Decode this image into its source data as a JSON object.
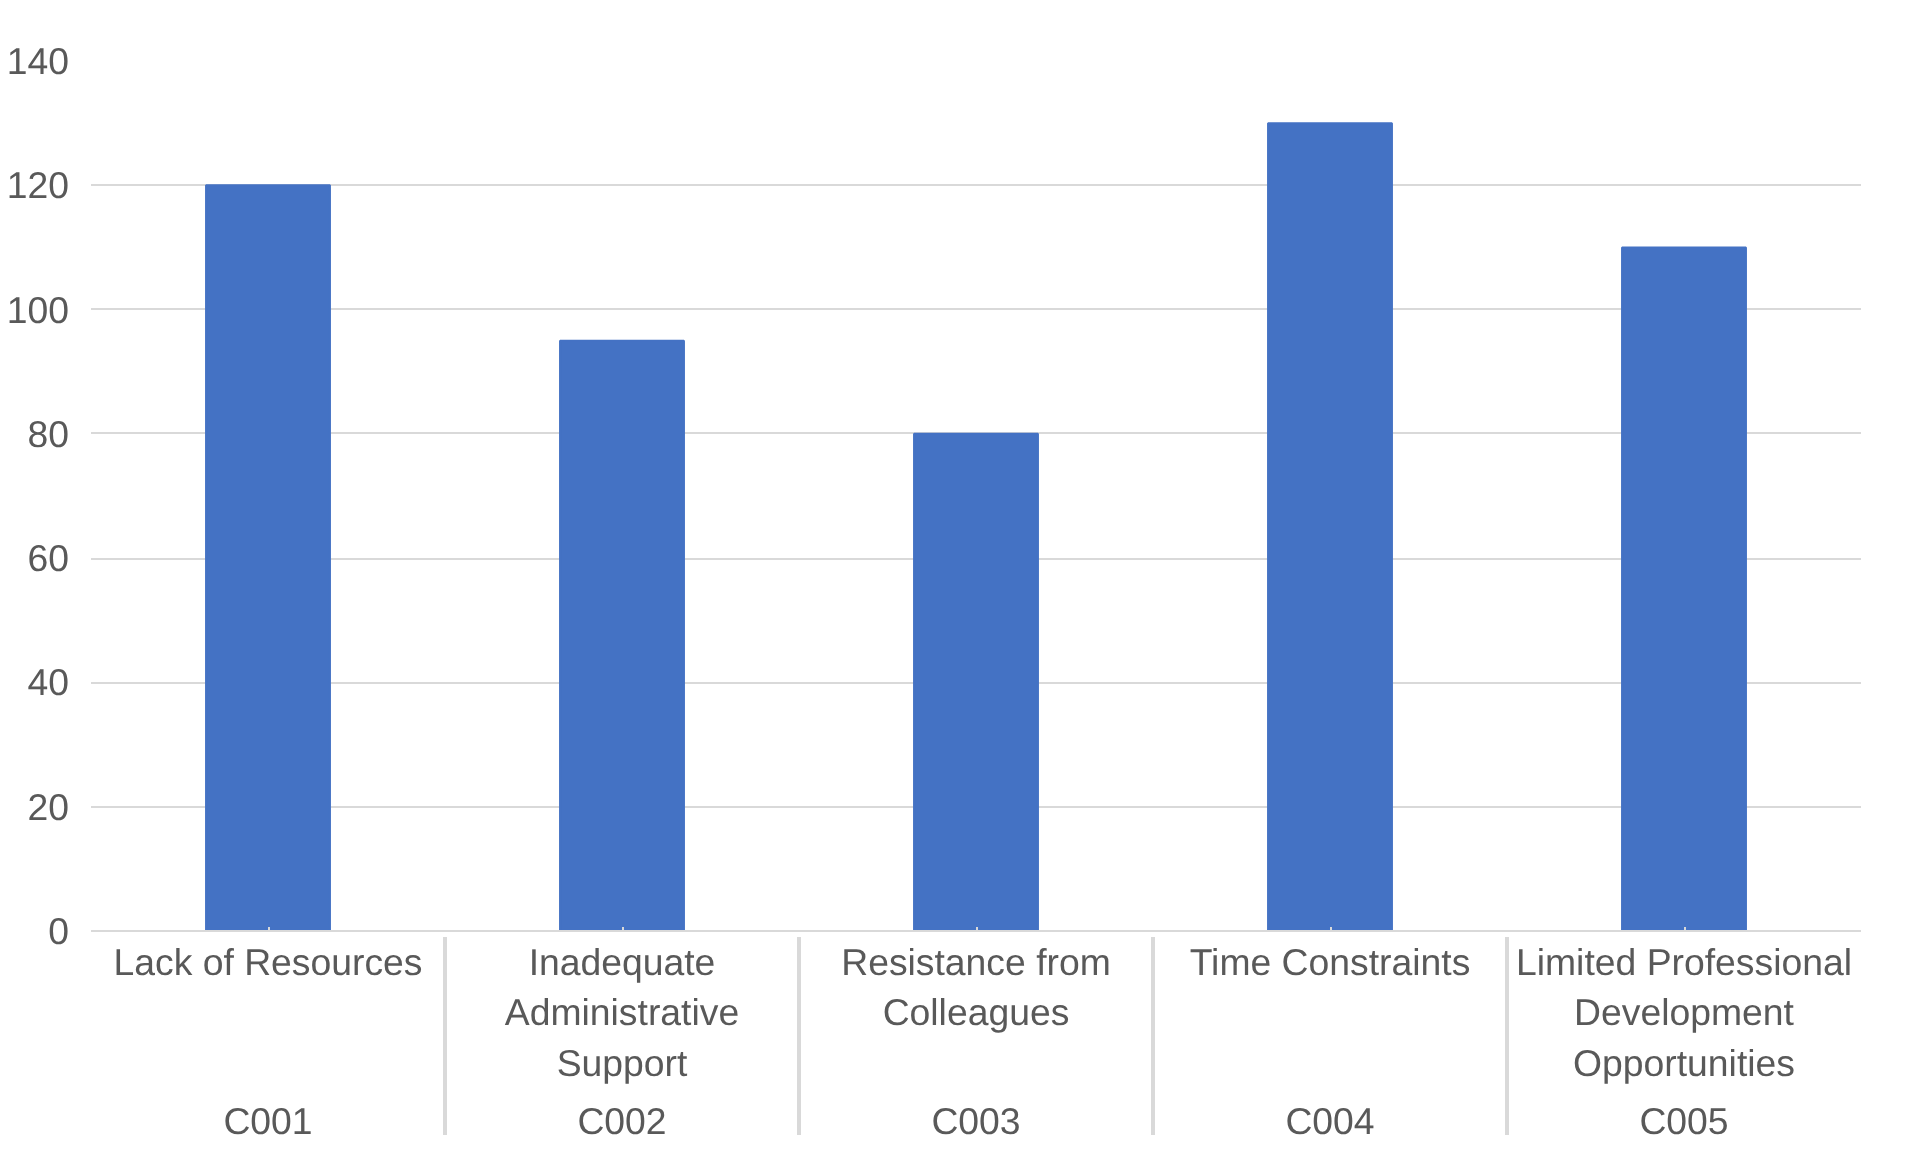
{
  "chart_data": {
    "type": "bar",
    "categories": [
      "Lack of Resources",
      "Inadequate Administrative Support",
      "Resistance from Colleagues",
      "Time Constraints",
      "Limited Professional Development Opportunities"
    ],
    "annotations": [
      "C001",
      "C002",
      "C003",
      "C004",
      "C005"
    ],
    "values": [
      120,
      95,
      80,
      130,
      110
    ],
    "color": "#4472c4",
    "ylim": [
      0,
      140
    ],
    "yticks": [
      0,
      20,
      40,
      60,
      80,
      100,
      120,
      140
    ],
    "grid": "y"
  }
}
